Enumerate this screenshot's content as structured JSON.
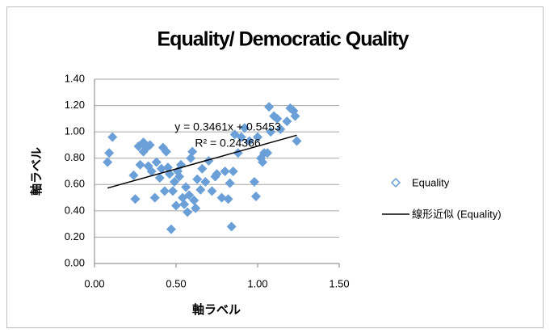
{
  "chart_data": {
    "type": "scatter",
    "title": "Equality/ Democratic Quality",
    "xlabel": "軸ラベル",
    "ylabel": "軸ラベル",
    "series": [
      {
        "name": "Equality",
        "color": "#6a9fd8",
        "x": [
          0.08,
          0.09,
          0.11,
          0.24,
          0.25,
          0.27,
          0.28,
          0.3,
          0.3,
          0.32,
          0.33,
          0.34,
          0.35,
          0.37,
          0.38,
          0.4,
          0.41,
          0.42,
          0.43,
          0.44,
          0.45,
          0.46,
          0.47,
          0.48,
          0.49,
          0.5,
          0.51,
          0.52,
          0.53,
          0.54,
          0.55,
          0.56,
          0.57,
          0.58,
          0.59,
          0.6,
          0.61,
          0.62,
          0.63,
          0.65,
          0.66,
          0.68,
          0.7,
          0.72,
          0.74,
          0.75,
          0.78,
          0.8,
          0.82,
          0.83,
          0.84,
          0.85,
          0.86,
          0.88,
          0.9,
          0.92,
          0.95,
          0.98,
          0.99,
          1.0,
          1.02,
          1.03,
          1.04,
          1.06,
          1.07,
          1.08,
          1.1,
          1.12,
          1.14,
          1.18,
          1.2,
          1.22,
          1.23,
          1.24
        ],
        "values": [
          0.77,
          0.84,
          0.96,
          0.67,
          0.49,
          0.89,
          0.75,
          0.92,
          0.85,
          0.88,
          0.74,
          0.9,
          0.7,
          0.5,
          0.77,
          0.65,
          0.72,
          0.88,
          0.55,
          0.85,
          0.73,
          0.68,
          0.26,
          0.55,
          0.62,
          0.44,
          0.7,
          0.66,
          0.75,
          0.5,
          0.45,
          0.58,
          0.39,
          0.52,
          0.8,
          0.85,
          0.48,
          0.42,
          0.64,
          0.56,
          0.72,
          0.62,
          0.78,
          0.55,
          0.66,
          0.68,
          0.5,
          0.7,
          0.49,
          0.61,
          0.28,
          0.7,
          0.98,
          0.84,
          0.96,
          1.03,
          0.93,
          0.62,
          0.51,
          0.96,
          0.8,
          0.77,
          0.84,
          0.84,
          1.19,
          1.0,
          1.12,
          1.1,
          1.02,
          1.08,
          1.18,
          1.16,
          1.12,
          0.93
        ]
      }
    ],
    "trendline": {
      "name": "線形近似 (Equality)",
      "color": "#000000",
      "slope": 0.3461,
      "intercept": 0.5453,
      "xlim": [
        0.08,
        1.24
      ]
    },
    "annotations": [
      "y = 0.3461x + 0.5453",
      "R² = 0.24366"
    ],
    "xlim": [
      0,
      1.5
    ],
    "ylim": [
      0,
      1.4
    ],
    "xticks": [
      {
        "value": 0,
        "label": "0.00"
      },
      {
        "value": 0.5,
        "label": "0.50"
      },
      {
        "value": 1,
        "label": "1.00"
      },
      {
        "value": 1.5,
        "label": "1.50"
      }
    ],
    "yticks": [
      {
        "value": 0,
        "label": "0.00"
      },
      {
        "value": 0.2,
        "label": "0.20"
      },
      {
        "value": 0.4,
        "label": "0.40"
      },
      {
        "value": 0.6,
        "label": "0.60"
      },
      {
        "value": 0.8,
        "label": "0.80"
      },
      {
        "value": 1,
        "label": "1.00"
      },
      {
        "value": 1.2,
        "label": "1.20"
      },
      {
        "value": 1.4,
        "label": "1.40"
      }
    ],
    "grid": true,
    "legend": "right"
  }
}
